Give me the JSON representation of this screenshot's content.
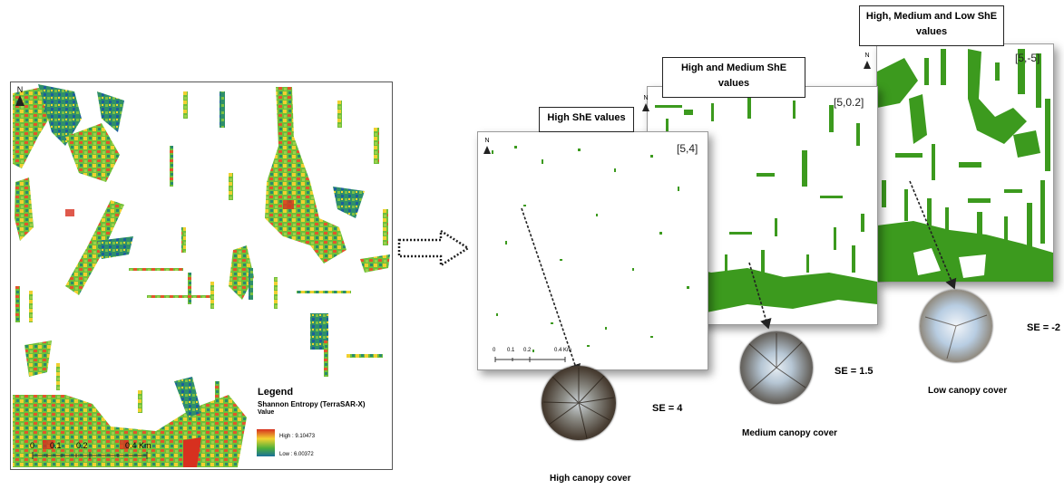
{
  "main_map": {
    "north": "N",
    "legend": {
      "title": "Legend",
      "layer": "Shannon Entropy (TerraSAR-X)",
      "value_heading": "Value",
      "high": "High : 9.10473",
      "low": "Low : 6.00372"
    },
    "scale": [
      "0",
      "0.1",
      "0.2",
      "0.4 Km"
    ]
  },
  "panels": [
    {
      "title": "High ShE values",
      "range": "[5,4]",
      "north": "N",
      "scale": [
        "0",
        "0.1",
        "0.2",
        "0.4 Km"
      ],
      "se": "SE = 4",
      "canopy": "High canopy cover"
    },
    {
      "title": "High and Medium ShE values",
      "range": "[5,0.2]",
      "north": "N",
      "se": "SE = 1.5",
      "canopy": "Medium canopy cover"
    },
    {
      "title": "High, Medium and Low ShE values",
      "range": "[5,-5]",
      "north": "N",
      "se": "SE = -2",
      "canopy": "Low canopy cover"
    }
  ],
  "colors": {
    "patch_green": "#3c9a1e",
    "entropy_high": "#d7301f",
    "entropy_mid": "#f2d330",
    "entropy_low": "#1a7a8a"
  }
}
